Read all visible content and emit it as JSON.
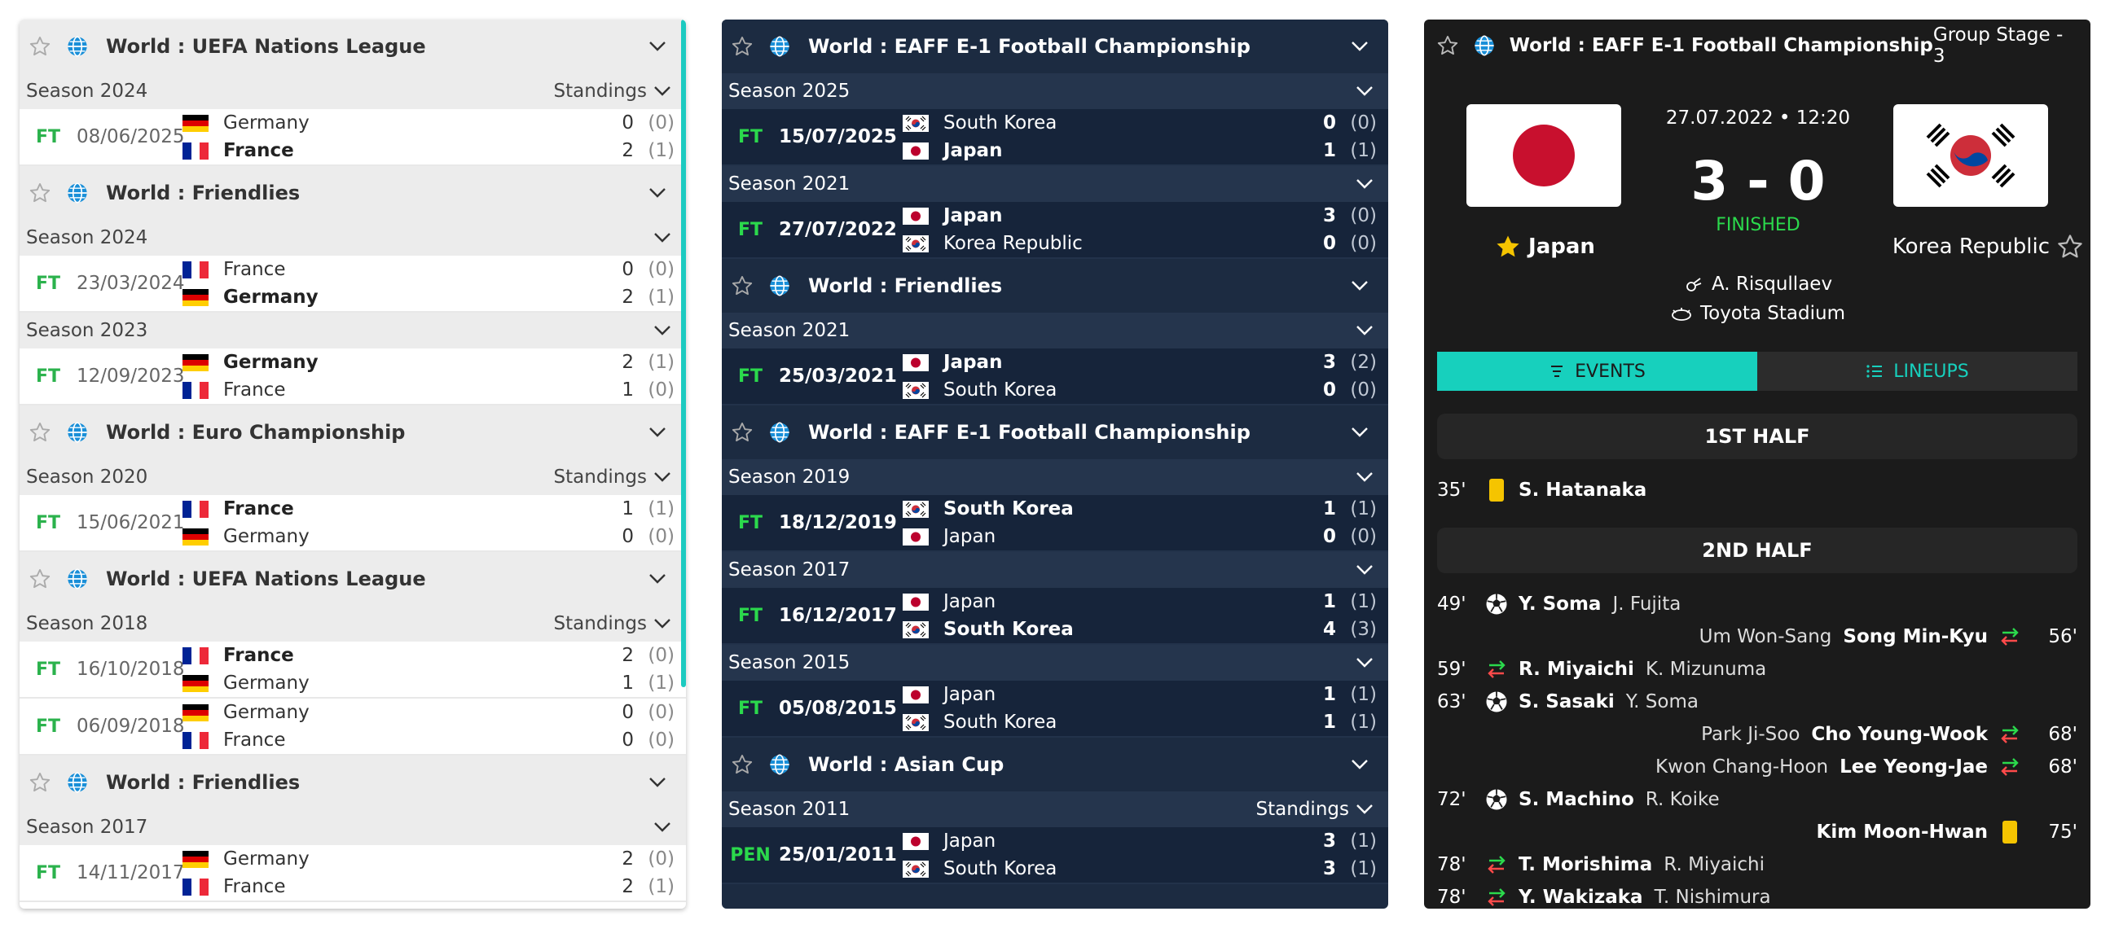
{
  "panel1": {
    "leagues": [
      {
        "name": "World : UEFA Nations League",
        "seasons": [
          {
            "label": "Season 2024",
            "standings": "Standings",
            "matches": [
              {
                "status": "FT",
                "date": "08/06/2025",
                "home": {
                  "name": "Germany",
                  "flag": "germany",
                  "win": false,
                  "score": "0",
                  "pen": "(0)"
                },
                "away": {
                  "name": "France",
                  "flag": "france",
                  "win": true,
                  "score": "2",
                  "pen": "(1)"
                }
              }
            ]
          }
        ]
      },
      {
        "name": "World : Friendlies",
        "seasons": [
          {
            "label": "Season 2024",
            "standings": "",
            "matches": [
              {
                "status": "FT",
                "date": "23/03/2024",
                "home": {
                  "name": "France",
                  "flag": "france",
                  "win": false,
                  "score": "0",
                  "pen": "(0)"
                },
                "away": {
                  "name": "Germany",
                  "flag": "germany",
                  "win": true,
                  "score": "2",
                  "pen": "(1)"
                }
              }
            ]
          },
          {
            "label": "Season 2023",
            "standings": "",
            "matches": [
              {
                "status": "FT",
                "date": "12/09/2023",
                "home": {
                  "name": "Germany",
                  "flag": "germany",
                  "win": true,
                  "score": "2",
                  "pen": "(1)"
                },
                "away": {
                  "name": "France",
                  "flag": "france",
                  "win": false,
                  "score": "1",
                  "pen": "(0)"
                }
              }
            ]
          }
        ]
      },
      {
        "name": "World : Euro Championship",
        "seasons": [
          {
            "label": "Season 2020",
            "standings": "Standings",
            "matches": [
              {
                "status": "FT",
                "date": "15/06/2021",
                "home": {
                  "name": "France",
                  "flag": "france",
                  "win": true,
                  "score": "1",
                  "pen": "(1)"
                },
                "away": {
                  "name": "Germany",
                  "flag": "germany",
                  "win": false,
                  "score": "0",
                  "pen": "(0)"
                }
              }
            ]
          }
        ]
      },
      {
        "name": "World : UEFA Nations League",
        "seasons": [
          {
            "label": "Season 2018",
            "standings": "Standings",
            "matches": [
              {
                "status": "FT",
                "date": "16/10/2018",
                "home": {
                  "name": "France",
                  "flag": "france",
                  "win": true,
                  "score": "2",
                  "pen": "(0)"
                },
                "away": {
                  "name": "Germany",
                  "flag": "germany",
                  "win": false,
                  "score": "1",
                  "pen": "(1)"
                }
              },
              {
                "status": "FT",
                "date": "06/09/2018",
                "home": {
                  "name": "Germany",
                  "flag": "germany",
                  "win": false,
                  "score": "0",
                  "pen": "(0)"
                },
                "away": {
                  "name": "France",
                  "flag": "france",
                  "win": false,
                  "score": "0",
                  "pen": "(0)"
                }
              }
            ]
          }
        ]
      },
      {
        "name": "World : Friendlies",
        "seasons": [
          {
            "label": "Season 2017",
            "standings": "",
            "matches": [
              {
                "status": "FT",
                "date": "14/11/2017",
                "home": {
                  "name": "Germany",
                  "flag": "germany",
                  "win": false,
                  "score": "2",
                  "pen": "(0)"
                },
                "away": {
                  "name": "France",
                  "flag": "france",
                  "win": false,
                  "score": "2",
                  "pen": "(1)"
                }
              }
            ]
          }
        ]
      }
    ]
  },
  "panel2": {
    "leagues": [
      {
        "name": "World : EAFF E-1 Football Championship",
        "seasons": [
          {
            "label": "Season 2025",
            "standings": "",
            "matches": [
              {
                "status": "FT",
                "date": "15/07/2025",
                "home": {
                  "name": "South Korea",
                  "flag": "korea",
                  "win": false,
                  "score": "0",
                  "pen": "(0)"
                },
                "away": {
                  "name": "Japan",
                  "flag": "japan",
                  "win": true,
                  "score": "1",
                  "pen": "(1)"
                }
              }
            ]
          },
          {
            "label": "Season 2021",
            "standings": "",
            "matches": [
              {
                "status": "FT",
                "date": "27/07/2022",
                "home": {
                  "name": "Japan",
                  "flag": "japan",
                  "win": true,
                  "score": "3",
                  "pen": "(0)"
                },
                "away": {
                  "name": "Korea Republic",
                  "flag": "korea",
                  "win": false,
                  "score": "0",
                  "pen": "(0)"
                }
              }
            ]
          }
        ]
      },
      {
        "name": "World : Friendlies",
        "seasons": [
          {
            "label": "Season 2021",
            "standings": "",
            "matches": [
              {
                "status": "FT",
                "date": "25/03/2021",
                "home": {
                  "name": "Japan",
                  "flag": "japan",
                  "win": true,
                  "score": "3",
                  "pen": "(2)"
                },
                "away": {
                  "name": "South Korea",
                  "flag": "korea",
                  "win": false,
                  "score": "0",
                  "pen": "(0)"
                }
              }
            ]
          }
        ]
      },
      {
        "name": "World : EAFF E-1 Football Championship",
        "seasons": [
          {
            "label": "Season 2019",
            "standings": "",
            "matches": [
              {
                "status": "FT",
                "date": "18/12/2019",
                "home": {
                  "name": "South Korea",
                  "flag": "korea",
                  "win": true,
                  "score": "1",
                  "pen": "(1)"
                },
                "away": {
                  "name": "Japan",
                  "flag": "japan",
                  "win": false,
                  "score": "0",
                  "pen": "(0)"
                }
              }
            ]
          },
          {
            "label": "Season 2017",
            "standings": "",
            "matches": [
              {
                "status": "FT",
                "date": "16/12/2017",
                "home": {
                  "name": "Japan",
                  "flag": "japan",
                  "win": false,
                  "score": "1",
                  "pen": "(1)"
                },
                "away": {
                  "name": "South Korea",
                  "flag": "korea",
                  "win": true,
                  "score": "4",
                  "pen": "(3)"
                }
              }
            ]
          },
          {
            "label": "Season 2015",
            "standings": "",
            "matches": [
              {
                "status": "FT",
                "date": "05/08/2015",
                "home": {
                  "name": "Japan",
                  "flag": "japan",
                  "win": false,
                  "score": "1",
                  "pen": "(1)"
                },
                "away": {
                  "name": "South Korea",
                  "flag": "korea",
                  "win": false,
                  "score": "1",
                  "pen": "(1)"
                }
              }
            ]
          }
        ]
      },
      {
        "name": "World : Asian Cup",
        "seasons": [
          {
            "label": "Season 2011",
            "standings": "Standings",
            "matches": [
              {
                "status": "PEN",
                "date": "25/01/2011",
                "home": {
                  "name": "Japan",
                  "flag": "japan",
                  "win": false,
                  "score": "3",
                  "pen": "(1)"
                },
                "away": {
                  "name": "South Korea",
                  "flag": "korea",
                  "win": false,
                  "score": "3",
                  "pen": "(1)"
                }
              }
            ]
          }
        ]
      }
    ]
  },
  "detail": {
    "league": "World : EAFF E-1 Football Championship",
    "stage": "Group Stage - 3",
    "datetime": "27.07.2022 • 12:20",
    "score": "3 - 0",
    "status": "FINISHED",
    "home": "Japan",
    "away": "Korea Republic",
    "referee": "A. Risqullaev",
    "venue": "Toyota Stadium",
    "tabs": {
      "events": "EVENTS",
      "lineups": "LINEUPS"
    },
    "halves": {
      "first": "1ST HALF",
      "second": "2ND HALF"
    },
    "colors": {
      "accent": "#17d0bd",
      "yellow_card": "#f5c400",
      "sub_in": "#2bd94c",
      "sub_out": "#ff4a4a"
    },
    "events_first": [
      {
        "minute": "35'",
        "type": "yellow-card",
        "side": "home",
        "player": "S. Hatanaka",
        "assist": ""
      }
    ],
    "events_second": [
      {
        "minute": "49'",
        "type": "goal",
        "side": "home",
        "player": "Y. Soma",
        "assist": "J. Fujita"
      },
      {
        "minute": "56'",
        "type": "substitution",
        "side": "away",
        "player": "Song Min-Kyu",
        "assist": "Um Won-Sang"
      },
      {
        "minute": "59'",
        "type": "substitution",
        "side": "home",
        "player": "R. Miyaichi",
        "assist": "K. Mizunuma"
      },
      {
        "minute": "63'",
        "type": "goal",
        "side": "home",
        "player": "S. Sasaki",
        "assist": "Y. Soma"
      },
      {
        "minute": "68'",
        "type": "substitution",
        "side": "away",
        "player": "Cho Young-Wook",
        "assist": "Park Ji-Soo"
      },
      {
        "minute": "68'",
        "type": "substitution",
        "side": "away",
        "player": "Lee Yeong-Jae",
        "assist": "Kwon Chang-Hoon"
      },
      {
        "minute": "72'",
        "type": "goal",
        "side": "home",
        "player": "S. Machino",
        "assist": "R. Koike"
      },
      {
        "minute": "75'",
        "type": "yellow-card",
        "side": "away",
        "player": "Kim Moon-Hwan",
        "assist": ""
      },
      {
        "minute": "78'",
        "type": "substitution",
        "side": "home",
        "player": "T. Morishima",
        "assist": "R. Miyaichi"
      },
      {
        "minute": "78'",
        "type": "substitution",
        "side": "home",
        "player": "Y. Wakizaka",
        "assist": "T. Nishimura"
      }
    ]
  }
}
